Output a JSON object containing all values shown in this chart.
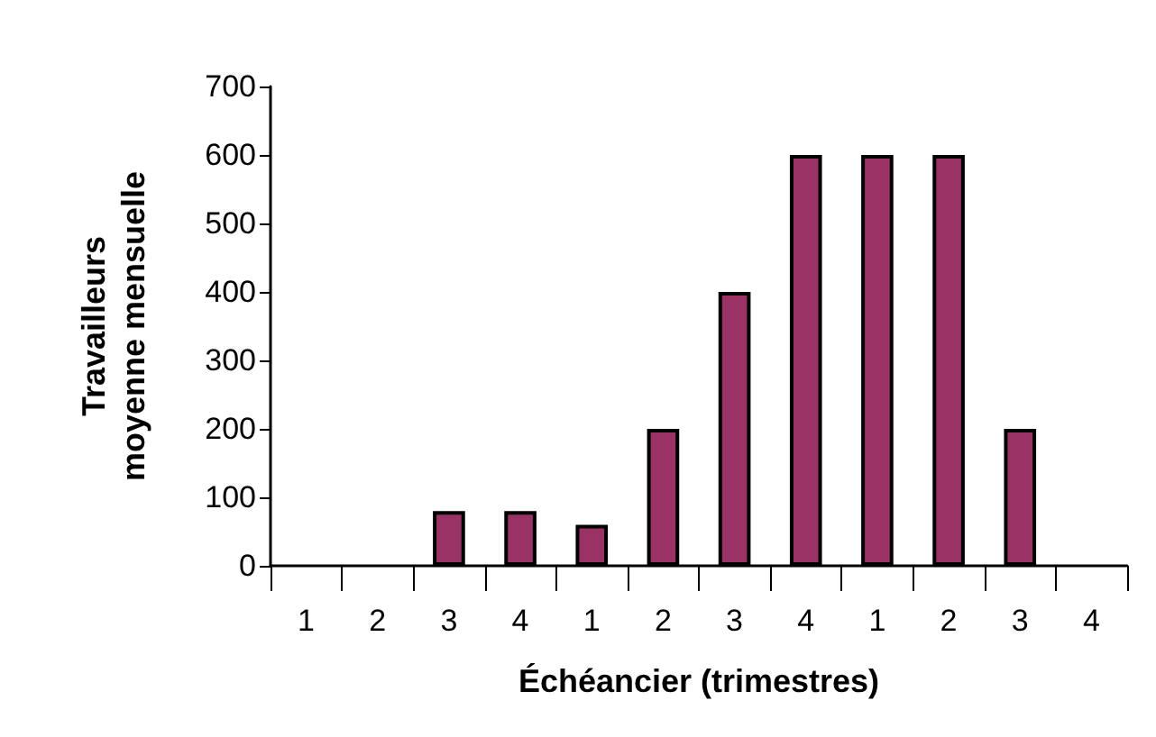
{
  "chart_data": {
    "type": "bar",
    "xlabel": "Échéancier (trimestres)",
    "ylabel": "Travailleurs\nmoyenne mensuelle",
    "categories": [
      "1",
      "2",
      "3",
      "4",
      "1",
      "2",
      "3",
      "4",
      "1",
      "2",
      "3",
      "4"
    ],
    "values": [
      0,
      0,
      80,
      80,
      60,
      200,
      400,
      600,
      600,
      600,
      200,
      0
    ],
    "color": "#993366",
    "ylim": [
      0,
      700
    ],
    "yticks": [
      0,
      100,
      200,
      300,
      400,
      500,
      600,
      700
    ],
    "grid": false
  }
}
